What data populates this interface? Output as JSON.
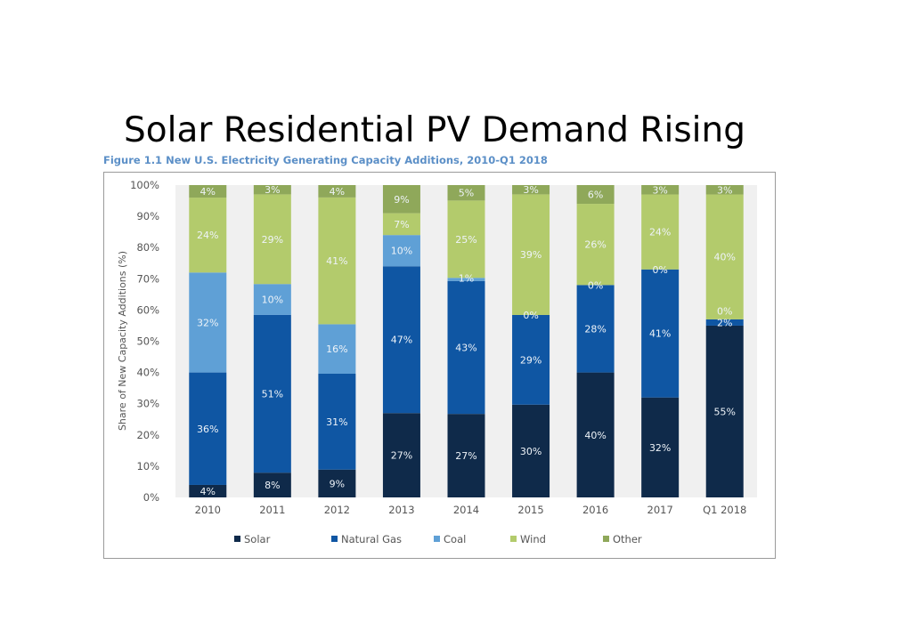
{
  "page_title": "Solar Residential PV Demand Rising",
  "chart_data": {
    "type": "bar",
    "stacked": true,
    "title": "Figure 1.1 New U.S. Electricity Generating Capacity Additions, 2010-Q1 2018",
    "xlabel": "",
    "ylabel": "Share of New Capacity Additions (%)",
    "ylim": [
      0,
      100
    ],
    "yticks": [
      "0%",
      "10%",
      "20%",
      "30%",
      "40%",
      "50%",
      "60%",
      "70%",
      "80%",
      "90%",
      "100%"
    ],
    "grid": false,
    "legend_position": "bottom",
    "categories": [
      "2010",
      "2011",
      "2012",
      "2013",
      "2014",
      "2015",
      "2016",
      "2017",
      "Q1 2018"
    ],
    "series": [
      {
        "name": "Solar",
        "color": "#0f2a4a",
        "values": [
          4,
          8,
          9,
          27,
          27,
          30,
          40,
          32,
          55
        ]
      },
      {
        "name": "Natural Gas",
        "color": "#0f56a3",
        "values": [
          36,
          51,
          31,
          47,
          43,
          29,
          28,
          41,
          2
        ]
      },
      {
        "name": "Coal",
        "color": "#5fa0d6",
        "values": [
          32,
          10,
          16,
          10,
          1,
          0,
          0,
          0,
          0
        ]
      },
      {
        "name": "Wind",
        "color": "#b3cb6c",
        "values": [
          24,
          29,
          41,
          7,
          25,
          39,
          26,
          24,
          40
        ]
      },
      {
        "name": "Other",
        "color": "#8fa85a",
        "values": [
          4,
          3,
          4,
          9,
          5,
          3,
          6,
          3,
          3
        ]
      }
    ],
    "data_labels": [
      [
        "4%",
        "8%",
        "9%",
        "27%",
        "27%",
        "30%",
        "40%",
        "32%",
        "55%"
      ],
      [
        "36%",
        "51%",
        "31%",
        "47%",
        "43%",
        "29%",
        "28%",
        "41%",
        "2%"
      ],
      [
        "32%",
        "10%",
        "16%",
        "10%",
        "1%",
        "0%",
        "0%",
        "0%",
        "0%"
      ],
      [
        "24%",
        "29%",
        "41%",
        "7%",
        "25%",
        "39%",
        "26%",
        "24%",
        "40%"
      ],
      [
        "4%",
        "3%",
        "4%",
        "9%",
        "5%",
        "3%",
        "6%",
        "3%",
        "3%"
      ]
    ]
  }
}
